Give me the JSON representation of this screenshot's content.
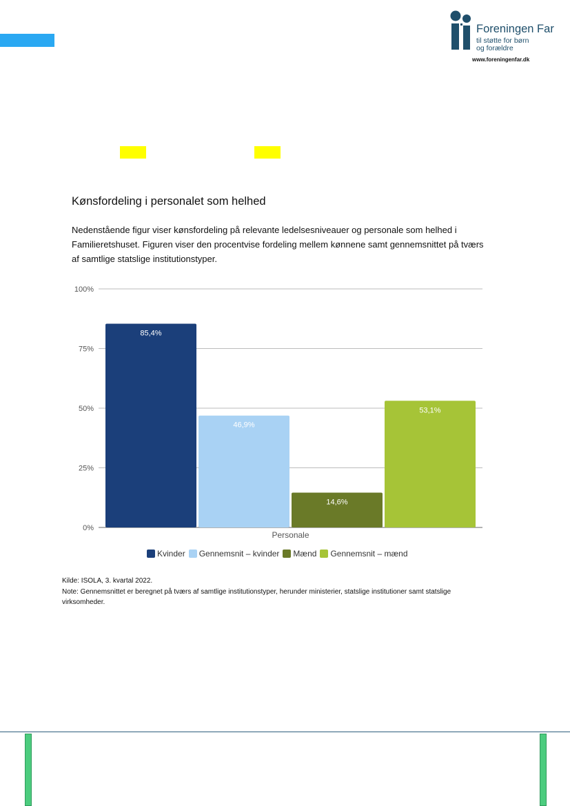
{
  "logo": {
    "name": "Foreningen Far",
    "tagline_1": "til støtte for børn",
    "tagline_2": "og forældre",
    "url": "www.foreningenfar.dk"
  },
  "section": {
    "heading": "Kønsfordeling i personalet som helhed",
    "intro": "Nedenstående figur viser kønsfordeling på relevante ledelsesniveauer og personale som helhed i Familieretshuset. Figuren viser den procentvise fordeling mellem kønnene samt gennemsnittet på tværs af samtlige statslige institutionstyper."
  },
  "chart_data": {
    "type": "bar",
    "categories": [
      "Personale"
    ],
    "series": [
      {
        "name": "Kvinder",
        "values": [
          85.4
        ],
        "label": "85,4%",
        "color": "#1b3f7a"
      },
      {
        "name": "Gennemsnit – kvinder",
        "values": [
          46.9
        ],
        "label": "46,9%",
        "color": "#a9d2f4"
      },
      {
        "name": "Mænd",
        "values": [
          14.6
        ],
        "label": "14,6%",
        "color": "#6a7a28"
      },
      {
        "name": "Gennemsnit – mænd",
        "values": [
          53.1
        ],
        "label": "53,1%",
        "color": "#a6c437"
      }
    ],
    "y_ticks": [
      "0%",
      "25%",
      "50%",
      "75%",
      "100%"
    ],
    "ylim": [
      0,
      100
    ],
    "grid": true,
    "legend_position": "bottom"
  },
  "notes": {
    "source": "Kilde: ISOLA, 3. kvartal 2022.",
    "note": "Note: Gennemsnittet er beregnet på tværs af samtlige institutionstyper, herunder ministerier, statslige institutioner samt statslige virksomheder."
  },
  "colors": {
    "accent_blue": "#2aa8f2",
    "highlight_yellow": "#ffff00",
    "footer_green": "#4ccc7e",
    "logo_teal": "#1f4f6b"
  }
}
